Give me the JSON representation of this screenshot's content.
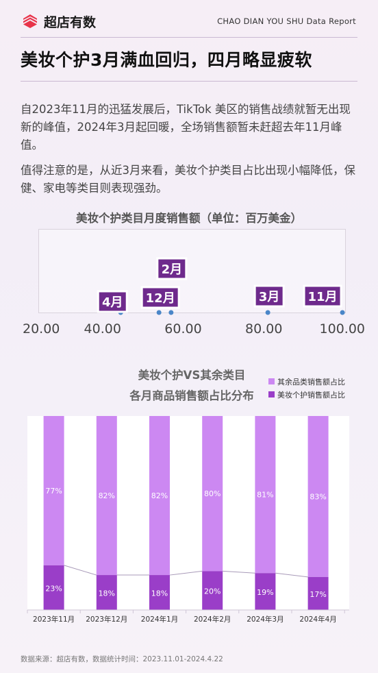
{
  "header": {
    "logo_text": "超店有数",
    "report_tag": "CHAO DIAN YOU SHU Data Report"
  },
  "title": "美妆个护3月满血回归，四月略显疲软",
  "paragraphs": [
    "自2023年11月的迅猛发展后，TikTok 美区的销售战绩就暂无出现新的峰值，2024年3月起回暖，全场销售额暂未赶超去年11月峰值。",
    "值得注意的是，从近3月来看，美妆个护类目占比出现小幅降低，保健、家电等类目则表现强劲。"
  ],
  "colors": {
    "accent_purple": "#6e2a8c",
    "light_purple": "#cc88f2",
    "dark_purple": "#9a3ec8",
    "dot_blue": "#4a86c8",
    "logo_red": "#e8344a"
  },
  "chart_data": [
    {
      "type": "scatter",
      "title": "美妆个护类目月度销售额（单位：百万美金）",
      "xlim": [
        20,
        100
      ],
      "x_tick_labels": [
        "20.00",
        "40.00",
        "60.00",
        "80.00",
        "100.00"
      ],
      "points": [
        {
          "label": "4月",
          "x": 44.5
        },
        {
          "label": "12月",
          "x": 54
        },
        {
          "label": "2月",
          "x": 57
        },
        {
          "label": "3月",
          "x": 81
        },
        {
          "label": "11月",
          "x": 99.5
        }
      ],
      "grid": false
    },
    {
      "type": "bar",
      "stacked": true,
      "title_lines": [
        "美妆个护VS其余类目",
        "各月商品销售额占比分布"
      ],
      "categories": [
        "2023年11月",
        "2023年12月",
        "2024年1月",
        "2024年2月",
        "2024年3月",
        "2024年4月"
      ],
      "series": [
        {
          "name": "其余品类销售额占比",
          "values": [
            77,
            82,
            82,
            80,
            81,
            83
          ],
          "labels": [
            "77%",
            "82%",
            "82%",
            "80%",
            "81%",
            "83%"
          ],
          "color": "#cc88f2"
        },
        {
          "name": "美妆个护销售额占比",
          "values": [
            23,
            18,
            18,
            20,
            19,
            17
          ],
          "labels": [
            "23%",
            "18%",
            "18%",
            "20%",
            "19%",
            "17%"
          ],
          "color": "#9a3ec8"
        }
      ],
      "ylim": [
        0,
        100
      ],
      "legend": "top-right"
    }
  ],
  "source": "数据来源：超店有数，数据统计时间：2023.11.01-2024.4.22"
}
